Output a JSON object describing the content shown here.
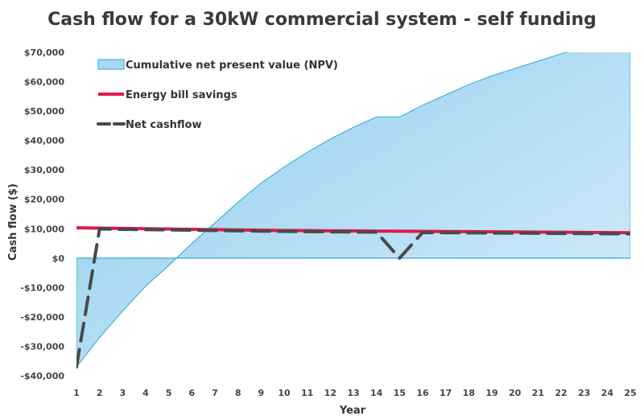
{
  "chart_data": {
    "type": "area",
    "title": "Cash flow for a 30kW commercial system - self funding",
    "xlabel": "Year",
    "ylabel": "Cash flow ($)",
    "x": [
      1,
      2,
      3,
      4,
      5,
      6,
      7,
      8,
      9,
      10,
      11,
      12,
      13,
      14,
      15,
      16,
      17,
      18,
      19,
      20,
      21,
      22,
      23,
      24,
      25
    ],
    "ylim": [
      -40000,
      70000
    ],
    "yticks": [
      -40000,
      -30000,
      -20000,
      -10000,
      0,
      10000,
      20000,
      30000,
      40000,
      50000,
      60000,
      70000
    ],
    "ytick_labels": [
      "-$40,000",
      "-$30,000",
      "-$20,000",
      "-$10,000",
      "$0",
      "$10,000",
      "$20,000",
      "$30,000",
      "$40,000",
      "$50,000",
      "$60,000",
      "$70,000"
    ],
    "grid": false,
    "legend_position": "top-left",
    "series": [
      {
        "name": "Cumulative net present value (NPV)",
        "kind": "area",
        "color": "#a9d8f2",
        "values": [
          -37000,
          -27000,
          -18000,
          -9500,
          -2500,
          5000,
          12000,
          19000,
          25500,
          31000,
          36000,
          40500,
          44500,
          48000,
          48000,
          52000,
          55500,
          59000,
          62000,
          64500,
          67000,
          69500,
          71500,
          73500,
          75500
        ]
      },
      {
        "name": "Energy bill savings",
        "kind": "line",
        "color": "#e0194e",
        "values": [
          10300,
          10200,
          10100,
          10000,
          9900,
          9800,
          9700,
          9600,
          9500,
          9400,
          9350,
          9300,
          9250,
          9200,
          9150,
          9100,
          9050,
          9000,
          8950,
          8900,
          8850,
          8800,
          8750,
          8700,
          8650
        ]
      },
      {
        "name": "Net cashflow",
        "kind": "dashed-line",
        "color": "#4a4a4a",
        "values": [
          -37000,
          9900,
          9800,
          9700,
          9600,
          9500,
          9400,
          9300,
          9200,
          9100,
          9000,
          8950,
          8900,
          8850,
          0,
          8700,
          8650,
          8600,
          8550,
          8500,
          8450,
          8400,
          8350,
          8300,
          8250
        ]
      }
    ]
  }
}
